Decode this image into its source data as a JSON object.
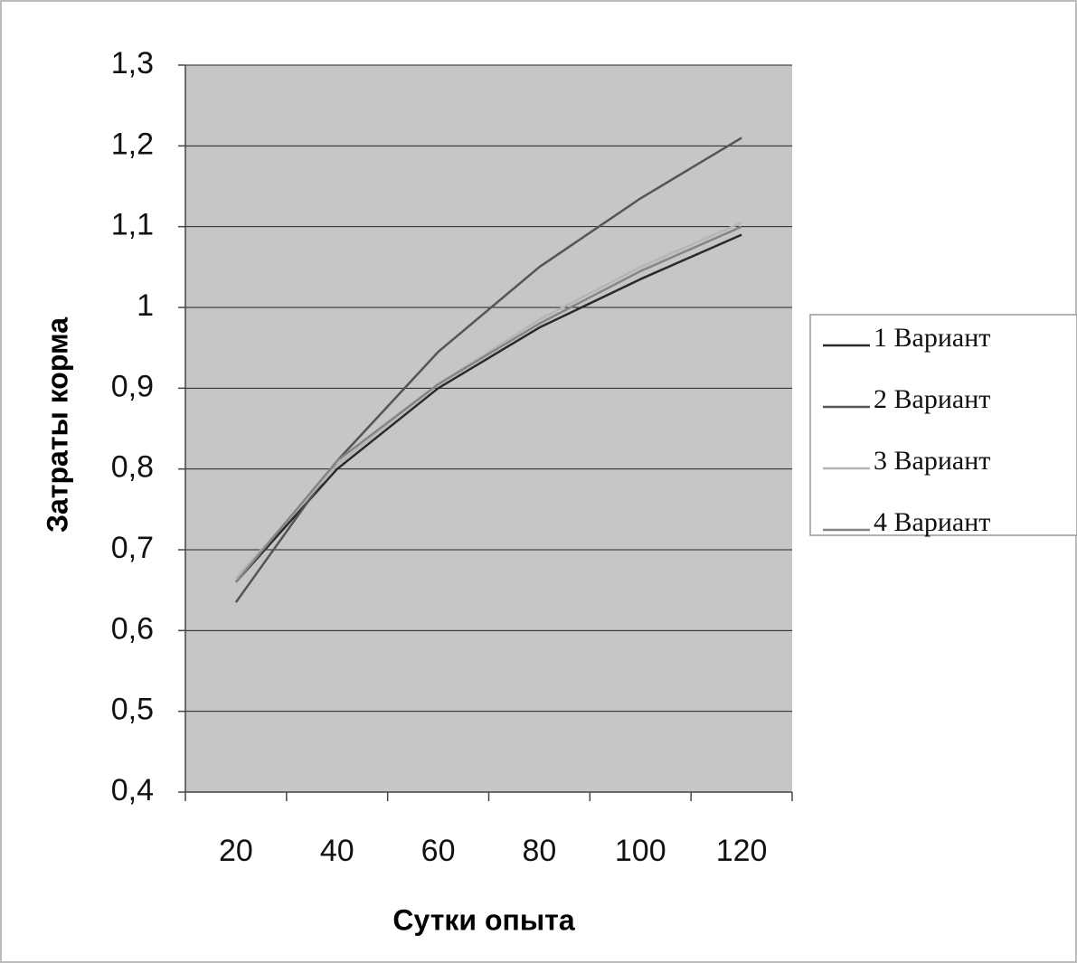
{
  "chart_data": {
    "type": "line",
    "x_label": "Сутки опыта",
    "y_label": "Затраты корма",
    "categories": [
      "20",
      "40",
      "60",
      "80",
      "100",
      "120"
    ],
    "series": [
      {
        "name": "1 Вариант",
        "color": "#2a2a2a",
        "values": [
          0.66,
          0.8,
          0.9,
          0.975,
          1.035,
          1.09
        ]
      },
      {
        "name": "2 Вариант",
        "color": "#555555",
        "values": [
          0.635,
          0.81,
          0.945,
          1.05,
          1.135,
          1.21
        ]
      },
      {
        "name": "3 Вариант",
        "color": "#b5b5b5",
        "values": [
          0.665,
          0.805,
          0.905,
          0.985,
          1.05,
          1.105
        ]
      },
      {
        "name": "4 Вариант",
        "color": "#858585",
        "values": [
          0.66,
          0.81,
          0.905,
          0.98,
          1.045,
          1.1
        ]
      }
    ],
    "ylim": [
      0.4,
      1.3
    ],
    "yticks": [
      {
        "value": 0.4,
        "label": "0,4"
      },
      {
        "value": 0.5,
        "label": "0,5"
      },
      {
        "value": 0.6,
        "label": "0,6"
      },
      {
        "value": 0.7,
        "label": "0,7"
      },
      {
        "value": 0.8,
        "label": "0,8"
      },
      {
        "value": 0.9,
        "label": "0,9"
      },
      1,
      {
        "value": 1.1,
        "label": "1,1"
      },
      {
        "value": 1.2,
        "label": "1,2"
      },
      {
        "value": 1.3,
        "label": "1,3"
      }
    ],
    "grid": true,
    "legend": "right"
  }
}
